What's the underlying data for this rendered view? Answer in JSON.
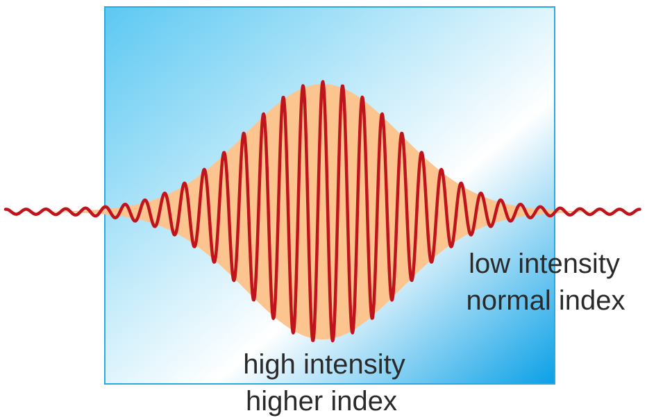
{
  "labels": {
    "low_intensity": "low intensity",
    "normal_index": "normal index",
    "high_intensity": "high intensity",
    "higher_index": "higher index"
  },
  "colors": {
    "wave": "#c0141c",
    "envelope": "#fcc48e",
    "medium_border": "#2aaae2",
    "medium_gradient_start": "#5cc8f2",
    "medium_gradient_mid": "#ffffff",
    "medium_gradient_end": "#0aa0e6",
    "text": "#2a2a2a"
  }
}
